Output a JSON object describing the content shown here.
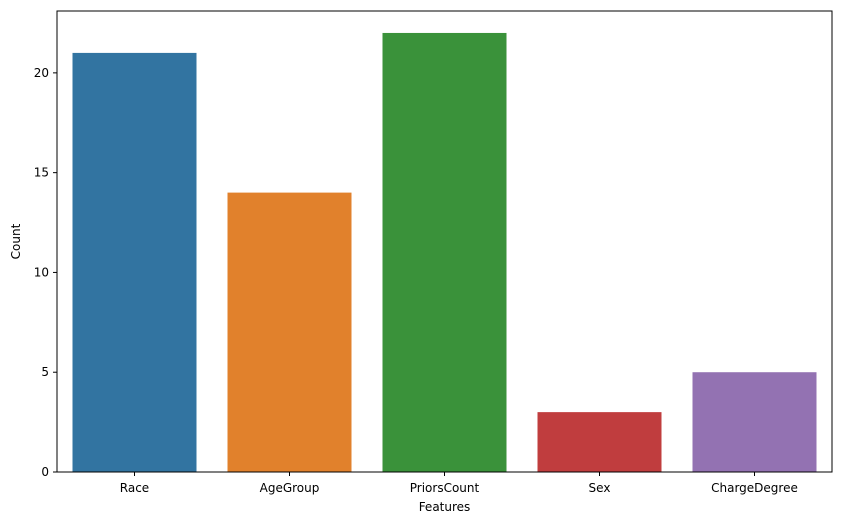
{
  "chart_data": {
    "type": "bar",
    "title": "",
    "xlabel": "Features",
    "ylabel": "Count",
    "categories": [
      "Race",
      "AgeGroup",
      "PriorsCount",
      "Sex",
      "ChargeDegree"
    ],
    "values": [
      21,
      14,
      22,
      3,
      5
    ],
    "colors": [
      "#3274a1",
      "#e1812c",
      "#3a923a",
      "#c03d3e",
      "#9372b2"
    ],
    "ylim": [
      0,
      23.1
    ],
    "yticks": [
      0,
      5,
      10,
      15,
      20
    ],
    "grid": false,
    "legend": "none"
  }
}
